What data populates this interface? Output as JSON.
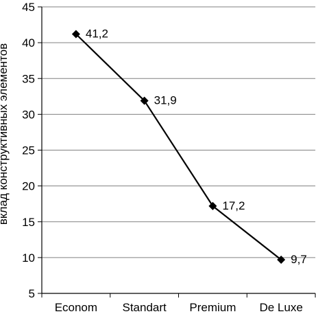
{
  "chart_data": {
    "type": "line",
    "categories": [
      "Econom",
      "Standart",
      "Premium",
      "De Luxe"
    ],
    "series": [
      {
        "values": [
          41.2,
          31.9,
          17.2,
          9.7
        ],
        "labels": [
          "41,2",
          "31,9",
          "17,2",
          "9,7"
        ]
      }
    ],
    "title": "",
    "xlabel": "",
    "ylabel": "вклад конструктивных элементов",
    "ylim": [
      5,
      45
    ],
    "yticks": [
      5,
      10,
      15,
      20,
      25,
      30,
      35,
      40,
      45
    ],
    "grid": true,
    "marker": "diamond",
    "line_color": "#000000",
    "grid_color": "#808080"
  }
}
